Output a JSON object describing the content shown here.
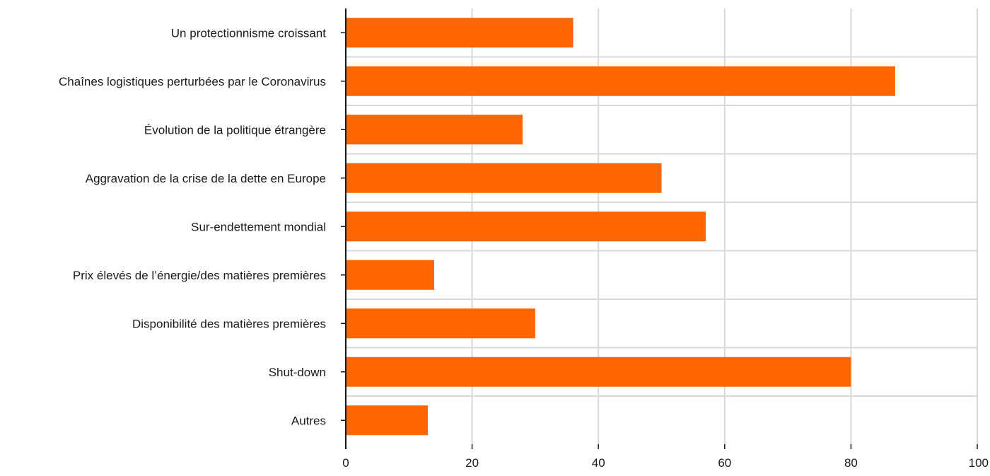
{
  "chart_data": {
    "type": "bar",
    "orientation": "horizontal",
    "title": "",
    "xlabel": "",
    "ylabel": "",
    "xlim": [
      0,
      100
    ],
    "x_ticks": [
      0,
      20,
      40,
      60,
      80,
      100
    ],
    "grid": true,
    "bar_color": "#ff6600",
    "categories": [
      "Un protectionnisme croissant",
      "Chaînes logistiques perturbées par le Coronavirus",
      "Évolution de la politique étrangère",
      "Aggravation de la crise de la dette en Europe",
      "Sur-endettement mondial",
      "Prix élevés de l’énergie/des matières premières",
      "Disponibilité des matières premières",
      "Shut-down",
      "Autres"
    ],
    "values": [
      36,
      87,
      28,
      50,
      57,
      14,
      30,
      80,
      13
    ]
  }
}
